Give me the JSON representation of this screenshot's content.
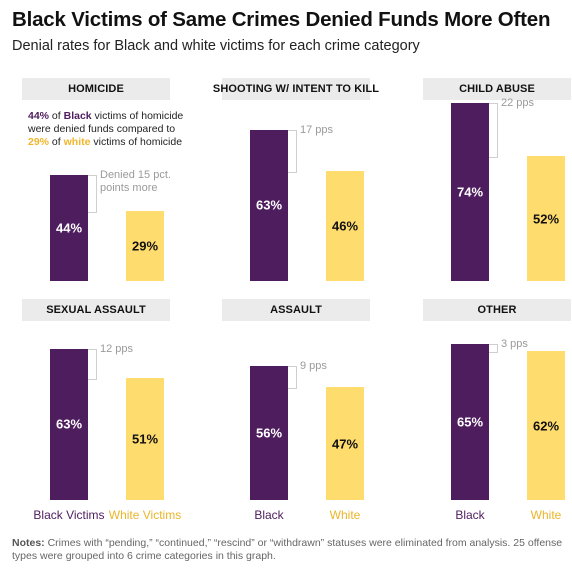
{
  "title": "Black Victims of Same Crimes Denied Funds More Often",
  "subtitle": "Denial rates for Black and white victims for each crime category",
  "colors": {
    "black": "#4e1d5e",
    "white": "#ffdc6e",
    "header_bg": "#ebebeb"
  },
  "annotation": {
    "pct_black": "44%",
    "t1": " of ",
    "black_word": "Black",
    "t2": " victims of homicide were denied funds compared to ",
    "pct_white": "29%",
    "t3": " of ",
    "white_word": "white",
    "t4": " victims of homicide"
  },
  "notes": {
    "label": "Notes:",
    "text": " Crimes with “pending,” “continued,” “rescind” or “withdrawn” statuses were eliminated from analysis. 25 offense types were grouped into 6 crime categories in this graph."
  },
  "chart_data": [
    {
      "type": "bar",
      "title": "HOMICIDE",
      "categories": [
        "Black",
        "White"
      ],
      "values": [
        44,
        29
      ],
      "value_labels": [
        "44%",
        "29%"
      ],
      "diff_label": "Denied 15 pct. points more",
      "category_labels": [
        "",
        ""
      ],
      "ylim": [
        0,
        80
      ]
    },
    {
      "type": "bar",
      "title": "SHOOTING W/ INTENT TO KILL",
      "categories": [
        "Black",
        "White"
      ],
      "values": [
        63,
        46
      ],
      "value_labels": [
        "63%",
        "46%"
      ],
      "diff_label": "17 pps",
      "category_labels": [
        "",
        ""
      ],
      "ylim": [
        0,
        80
      ]
    },
    {
      "type": "bar",
      "title": "CHILD ABUSE",
      "categories": [
        "Black",
        "White"
      ],
      "values": [
        74,
        52
      ],
      "value_labels": [
        "74%",
        "52%"
      ],
      "diff_label": "22 pps",
      "category_labels": [
        "",
        ""
      ],
      "ylim": [
        0,
        80
      ]
    },
    {
      "type": "bar",
      "title": "SEXUAL ASSAULT",
      "categories": [
        "Black",
        "White"
      ],
      "values": [
        63,
        51
      ],
      "value_labels": [
        "63%",
        "51%"
      ],
      "diff_label": "12 pps",
      "category_labels": [
        "Black Victims",
        "White Victims"
      ],
      "ylim": [
        0,
        80
      ]
    },
    {
      "type": "bar",
      "title": "ASSAULT",
      "categories": [
        "Black",
        "White"
      ],
      "values": [
        56,
        47
      ],
      "value_labels": [
        "56%",
        "47%"
      ],
      "diff_label": "9 pps",
      "category_labels": [
        "Black",
        "White"
      ],
      "ylim": [
        0,
        80
      ]
    },
    {
      "type": "bar",
      "title": "OTHER",
      "categories": [
        "Black",
        "White"
      ],
      "values": [
        65,
        62
      ],
      "value_labels": [
        "65%",
        "62%"
      ],
      "diff_label": "3 pps",
      "category_labels": [
        "Black",
        "White"
      ],
      "ylim": [
        0,
        80
      ]
    }
  ]
}
